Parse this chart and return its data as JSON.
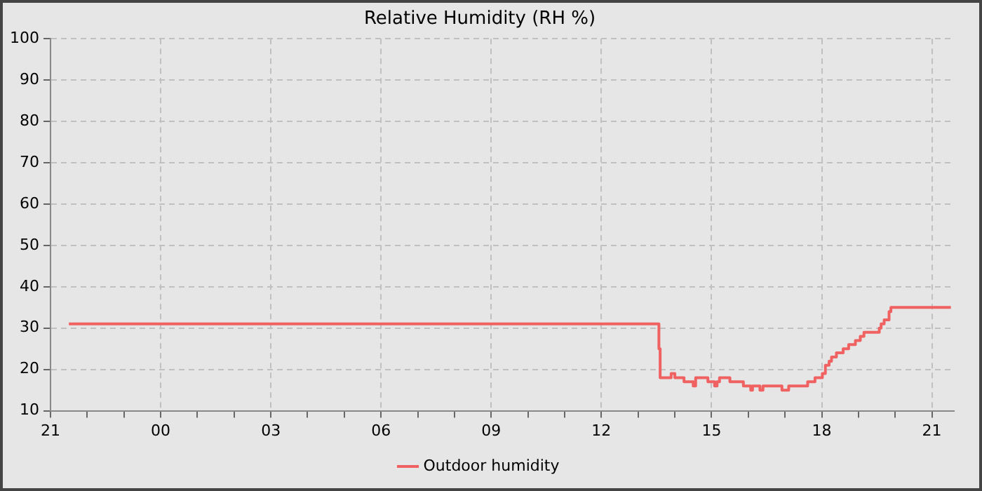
{
  "chart_data": {
    "type": "step",
    "title": "Relative Humidity (RH %)",
    "xlim": [
      "--01-01T21:00",
      "--01-02T21:36"
    ],
    "xticks": [
      {
        "value": "--01-01T21:00",
        "label": "21"
      },
      {
        "value": "--01-01T22:00",
        "label": null
      },
      {
        "value": "--01-01T23:00",
        "label": null
      },
      {
        "value": "--01-02T00:00",
        "label": "00"
      },
      {
        "value": "--01-02T01:00",
        "label": null
      },
      {
        "value": "--01-02T02:00",
        "label": null
      },
      {
        "value": "--01-02T03:00",
        "label": "03"
      },
      {
        "value": "--01-02T04:00",
        "label": null
      },
      {
        "value": "--01-02T05:00",
        "label": null
      },
      {
        "value": "--01-02T06:00",
        "label": "06"
      },
      {
        "value": "--01-02T07:00",
        "label": null
      },
      {
        "value": "--01-02T08:00",
        "label": null
      },
      {
        "value": "--01-02T09:00",
        "label": "09"
      },
      {
        "value": "--01-02T10:00",
        "label": null
      },
      {
        "value": "--01-02T11:00",
        "label": null
      },
      {
        "value": "--01-02T12:00",
        "label": "12"
      },
      {
        "value": "--01-02T13:00",
        "label": null
      },
      {
        "value": "--01-02T14:00",
        "label": null
      },
      {
        "value": "--01-02T15:00",
        "label": "15"
      },
      {
        "value": "--01-02T16:00",
        "label": null
      },
      {
        "value": "--01-02T17:00",
        "label": null
      },
      {
        "value": "--01-02T18:00",
        "label": "18"
      },
      {
        "value": "--01-02T19:00",
        "label": null
      },
      {
        "value": "--01-02T20:00",
        "label": null
      },
      {
        "value": "--01-02T21:00",
        "label": "21"
      }
    ],
    "ylim": [
      10,
      100
    ],
    "yticks": [
      10,
      20,
      30,
      40,
      50,
      60,
      70,
      80,
      90,
      100
    ],
    "grid": true,
    "legend": "bottom",
    "marker": "none",
    "line_style": "solid",
    "series": [
      {
        "name": "Outdoor humidity",
        "color": "#f06262",
        "x": [
          "--01-01T21:30",
          "--01-02T13:34",
          "--01-02T13:36",
          "--01-02T13:54",
          "--01-02T14:00",
          "--01-02T14:15",
          "--01-02T14:30",
          "--01-02T14:34",
          "--01-02T14:54",
          "--01-02T15:05",
          "--01-02T15:09",
          "--01-02T15:13",
          "--01-02T15:30",
          "--01-02T15:52",
          "--01-02T16:04",
          "--01-02T16:07",
          "--01-02T16:19",
          "--01-02T16:24",
          "--01-02T16:55",
          "--01-02T17:06",
          "--01-02T17:37",
          "--01-02T17:49",
          "--01-02T18:01",
          "--01-02T18:06",
          "--01-02T18:12",
          "--01-02T18:16",
          "--01-02T18:24",
          "--01-02T18:35",
          "--01-02T18:44",
          "--01-02T18:55",
          "--01-02T19:03",
          "--01-02T19:09",
          "--01-02T19:34",
          "--01-02T19:37",
          "--01-02T19:42",
          "--01-02T19:50",
          "--01-02T19:53",
          "--01-02T21:31"
        ],
        "values": [
          31,
          25,
          18,
          19,
          18,
          17,
          16,
          18,
          17,
          16,
          17,
          18,
          17,
          16,
          15,
          16,
          15,
          16,
          15,
          16,
          17,
          18,
          19,
          21,
          22,
          23,
          24,
          25,
          26,
          27,
          28,
          29,
          30,
          31,
          32,
          34,
          35,
          35
        ]
      }
    ]
  }
}
